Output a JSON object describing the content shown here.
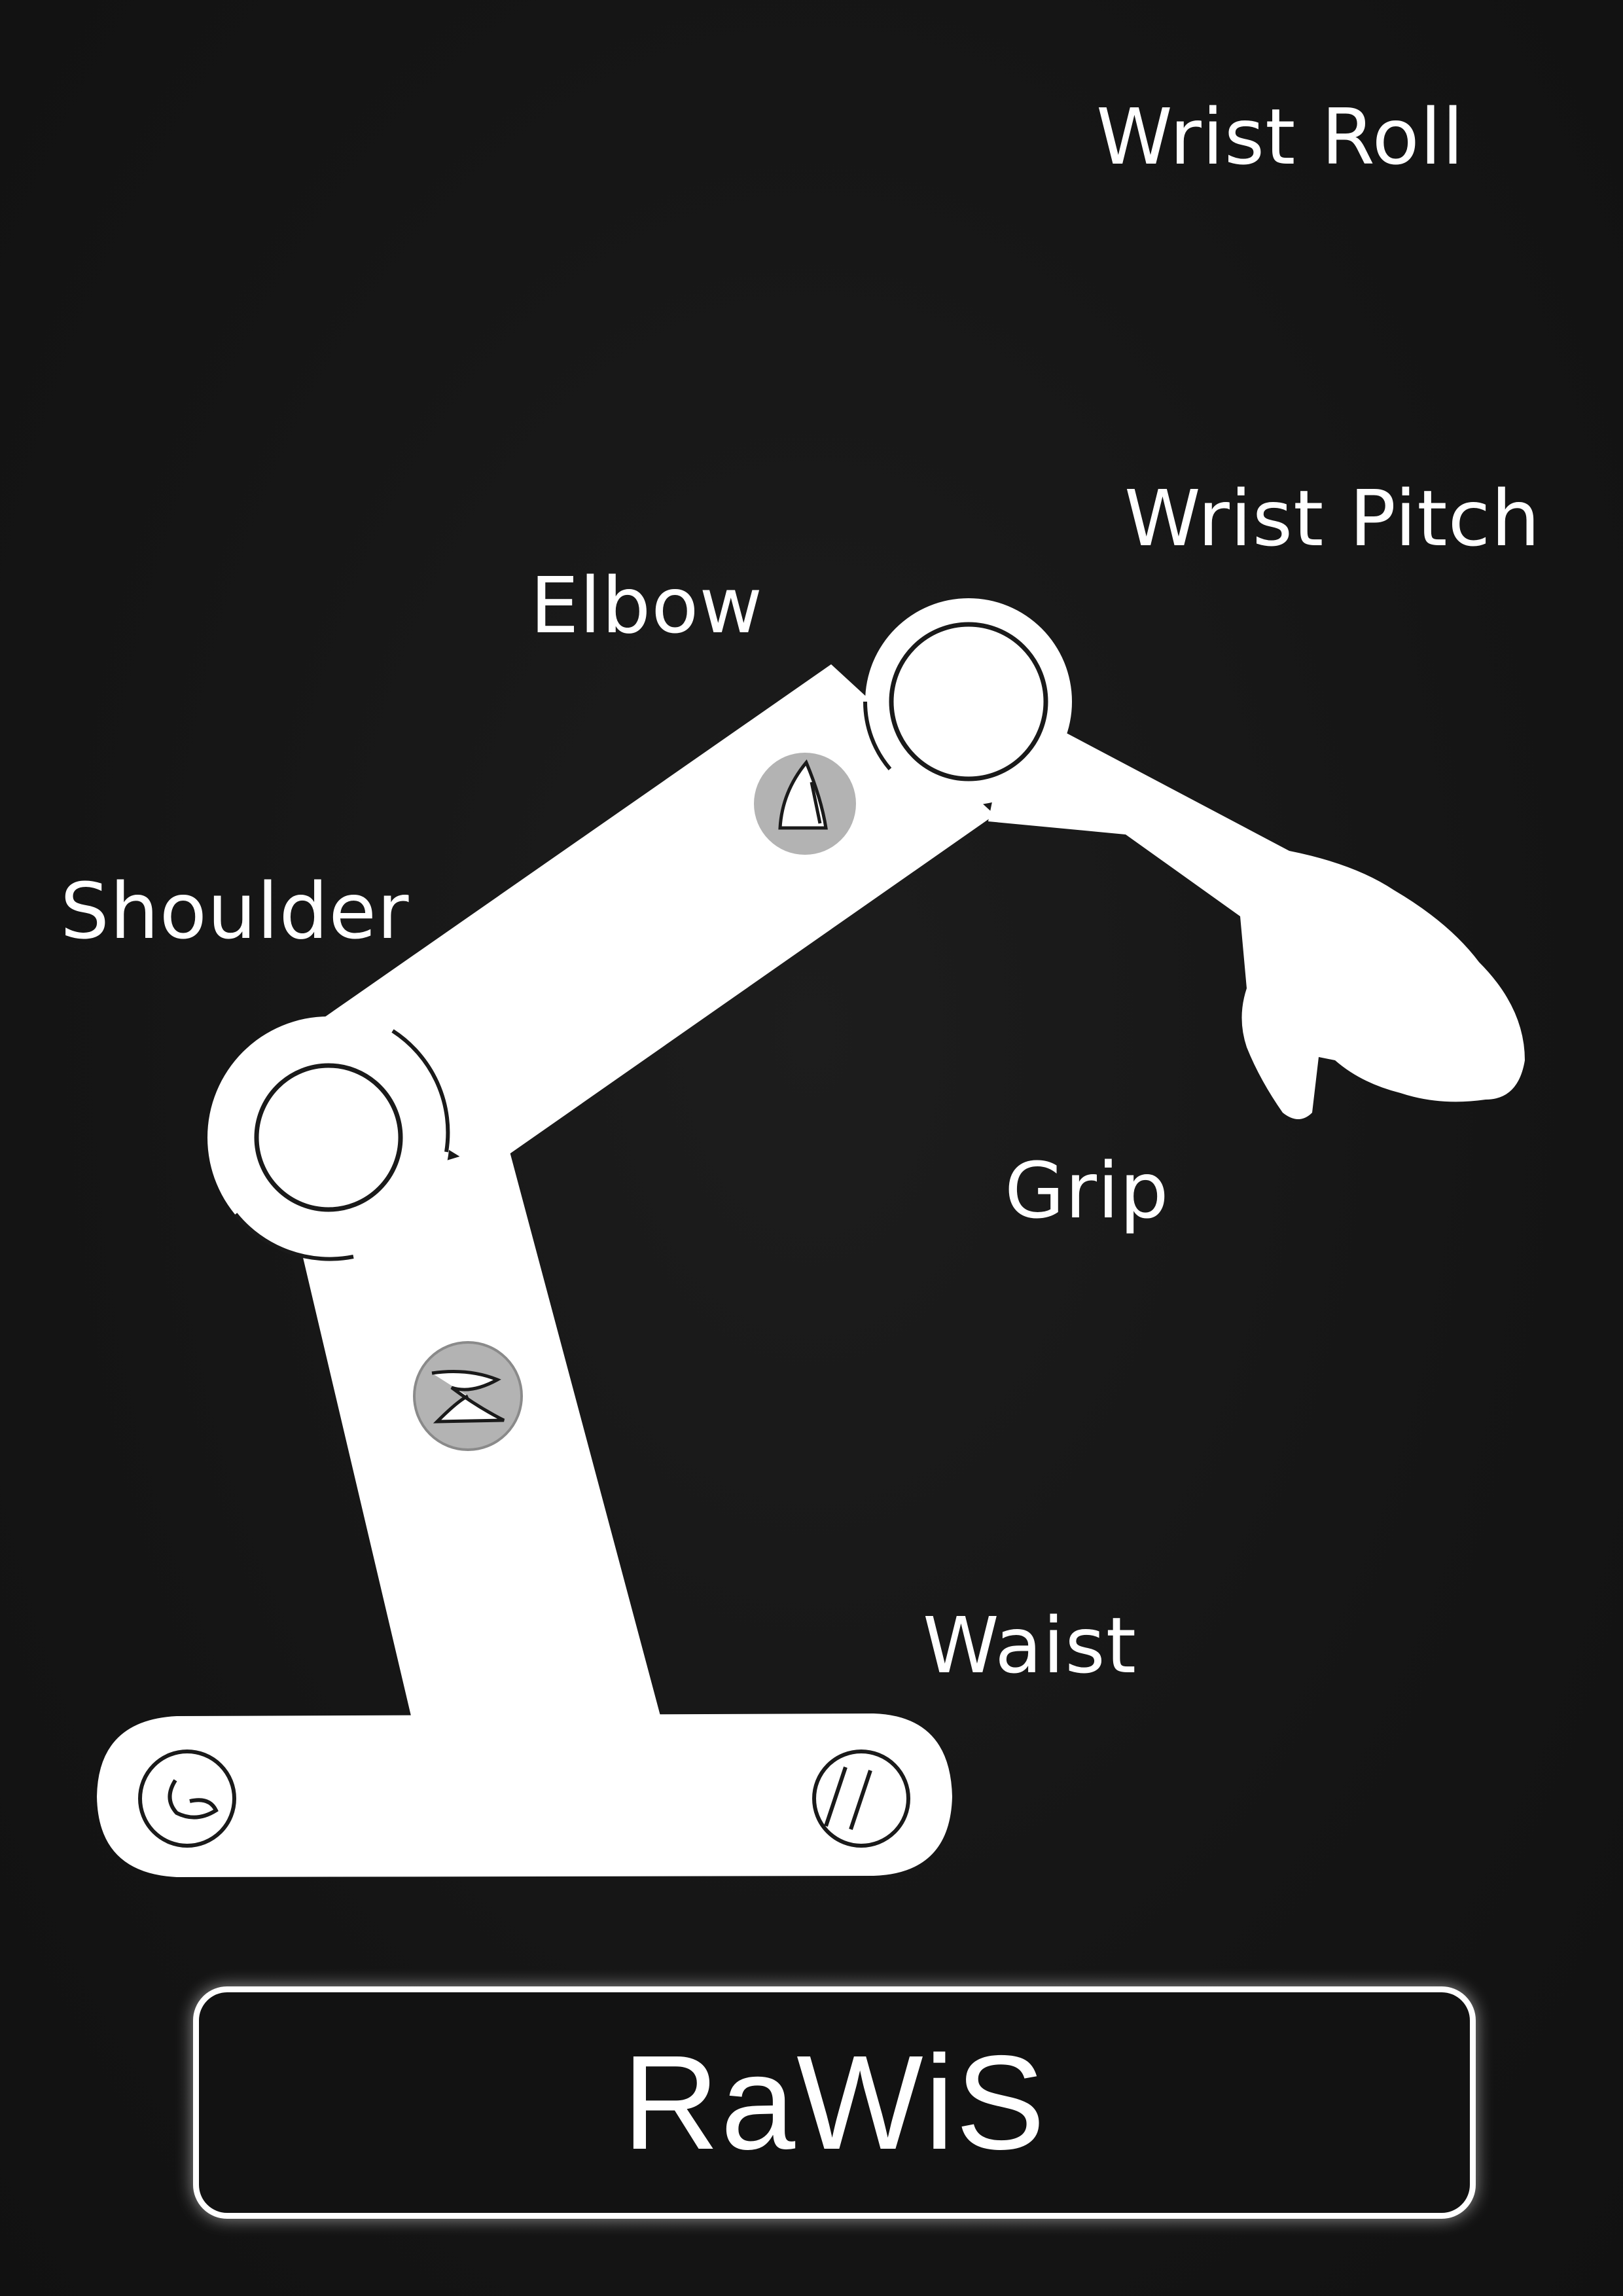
{
  "labels": {
    "wrist_roll": "Wrist Roll",
    "wrist_pitch": "Wrist Pitch",
    "elbow": "Elbow",
    "shoulder": "Shoulder",
    "grip": "Grip",
    "waist": "Waist"
  },
  "title": "RaWiS",
  "colors": {
    "background": "#151515",
    "arm": "#ffffff",
    "outline": "#1a1a1a",
    "screw": "#b3b3b3",
    "text": "#ffffff"
  }
}
